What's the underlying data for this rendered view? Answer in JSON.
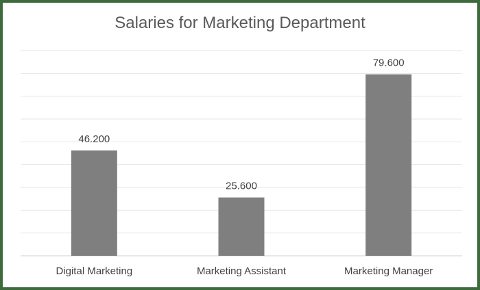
{
  "chart_data": {
    "type": "bar",
    "title": "Salaries for Marketing Department",
    "categories": [
      "Digital Marketing",
      "Marketing Assistant",
      "Marketing Manager"
    ],
    "values": [
      46.2,
      25.6,
      79.6
    ],
    "data_labels": [
      "46.200",
      "25.600",
      "79.600"
    ],
    "xlabel": "",
    "ylabel": "",
    "ylim": [
      0,
      90
    ],
    "grid": true,
    "legend": "none",
    "bar_color": "#7f7f7f",
    "grid_color": "#e6e6e6",
    "border_color": "#3d6b3b"
  }
}
